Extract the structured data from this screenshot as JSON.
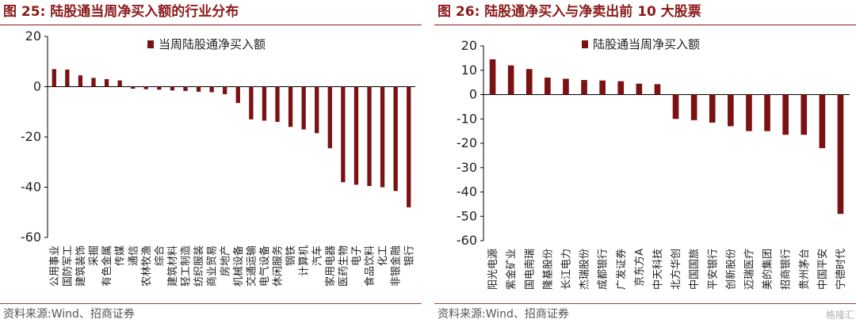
{
  "left": {
    "title": "图 25:  陆股通当周净买入额的行业分布",
    "source": "资料来源:Wind、招商证券"
  },
  "right": {
    "title": "图 26:  陆股通净买入与净卖出前 10 大股票",
    "source": "资料来源:Wind、招商证券"
  },
  "watermark": "格隆汇",
  "colors": {
    "bar": "#7b1113",
    "title": "#8b1a1a",
    "text": "#222222"
  },
  "chart_data": [
    {
      "type": "bar",
      "legend": "当周陆股通净买入额",
      "legend_position": "top-center",
      "grid": false,
      "ylim": [
        -60,
        20
      ],
      "yticks": [
        20,
        0,
        -20,
        -40,
        -60
      ],
      "categories": [
        "公用事业",
        "国防军工",
        "建筑装饰",
        "采掘",
        "有色金属",
        "传媒",
        "通信",
        "农林牧渔",
        "综合",
        "建筑材料",
        "轻工制造",
        "纺织服装",
        "商业贸易",
        "房地产",
        "机械设备",
        "交通运输",
        "电气设备",
        "休闲服务",
        "钢铁",
        "计算机",
        "汽车",
        "家用电器",
        "医药生物",
        "电子",
        "食品饮料",
        "化工",
        "非银金融",
        "银行"
      ],
      "values": [
        7.0,
        6.8,
        4.5,
        3.5,
        3.0,
        2.5,
        -0.8,
        -1.0,
        -1.2,
        -1.5,
        -1.7,
        -2.0,
        -2.2,
        -3.0,
        -6.5,
        -13.0,
        -13.5,
        -14.0,
        -16.0,
        -17.0,
        -18.5,
        -24.5,
        -38.0,
        -39.0,
        -39.5,
        -40.0,
        -41.5,
        -48.0
      ]
    },
    {
      "type": "bar",
      "legend": "陆股通当周净买入额",
      "legend_position": "top-center",
      "grid": false,
      "ylim": [
        -60,
        20
      ],
      "yticks": [
        20,
        10,
        0,
        -10,
        -20,
        -30,
        -40,
        -50,
        -60
      ],
      "categories": [
        "阳光电源",
        "紫金矿业",
        "国电南瑞",
        "隆基股份",
        "长江电力",
        "杰瑞股份",
        "成都银行",
        "广发证券",
        "京东方A",
        "中天科技",
        "北方华创",
        "中国国旅",
        "平安银行",
        "创新股份",
        "迈瑞医疗",
        "美的集团",
        "招商银行",
        "贵州茅台",
        "中国平安",
        "宁德时代"
      ],
      "values": [
        14.5,
        12.0,
        10.5,
        7.0,
        6.5,
        6.0,
        5.8,
        5.5,
        4.5,
        4.3,
        -10.0,
        -10.5,
        -11.5,
        -13.0,
        -15.0,
        -15.0,
        -16.5,
        -16.5,
        -22.0,
        -49.0
      ]
    }
  ]
}
